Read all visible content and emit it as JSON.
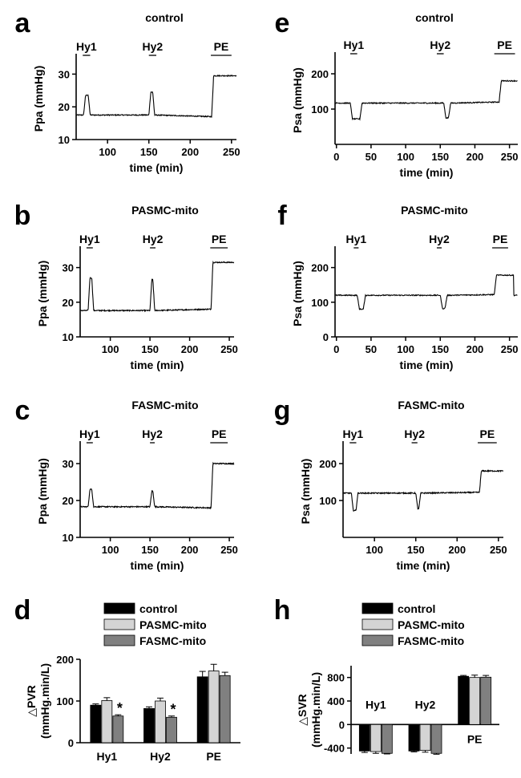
{
  "panels": [
    {
      "letter": "a",
      "type": "trace",
      "title": "control",
      "ylabel": "Ppa (mmHg)",
      "xlabel": "time (min)",
      "xlim": [
        62,
        256
      ],
      "ylim": [
        10,
        35
      ],
      "xticks": [
        100,
        150,
        200,
        250
      ],
      "yticks": [
        10,
        20,
        30
      ],
      "events": [
        {
          "label": "Hy1",
          "start": 70,
          "end": 79
        },
        {
          "label": "Hy2",
          "start": 150,
          "end": 159
        },
        {
          "label": "PE",
          "start": 225,
          "end": 250
        }
      ],
      "trace": {
        "baseline": 17.5,
        "segments": [
          [
            71,
            79,
            23.5
          ],
          [
            150,
            157,
            24.5
          ],
          [
            226,
            256,
            29.5
          ]
        ],
        "pe_base": 17.0
      }
    },
    {
      "letter": "b",
      "type": "trace",
      "title": "PASMC-mito",
      "ylabel": "Ppa (mmHg)",
      "xlabel": "time (min)",
      "xlim": [
        62,
        256
      ],
      "ylim": [
        10,
        35
      ],
      "xticks": [
        100,
        150,
        200,
        250
      ],
      "yticks": [
        10,
        20,
        30
      ],
      "events": [
        {
          "label": "Hy1",
          "start": 70,
          "end": 78
        },
        {
          "label": "Hy2",
          "start": 150,
          "end": 157
        },
        {
          "label": "PE",
          "start": 226,
          "end": 248
        }
      ],
      "trace": {
        "baseline": 17.6,
        "segments": [
          [
            72,
            79,
            27
          ],
          [
            150,
            156,
            26.5
          ],
          [
            227,
            256,
            31.5
          ]
        ],
        "pe_base": 18.0
      }
    },
    {
      "letter": "c",
      "type": "trace",
      "title": "FASMC-mito",
      "ylabel": "Ppa (mmHg)",
      "xlabel": "time (min)",
      "xlim": [
        62,
        256
      ],
      "ylim": [
        10,
        35
      ],
      "xticks": [
        100,
        150,
        200,
        250
      ],
      "yticks": [
        10,
        20,
        30
      ],
      "events": [
        {
          "label": "Hy1",
          "start": 70,
          "end": 78
        },
        {
          "label": "Hy2",
          "start": 150,
          "end": 156
        },
        {
          "label": "PE",
          "start": 226,
          "end": 248
        }
      ],
      "trace": {
        "baseline": 18.3,
        "segments": [
          [
            72,
            79,
            23
          ],
          [
            150,
            156,
            22.5
          ],
          [
            227,
            256,
            30
          ]
        ],
        "pe_base": 18.0
      }
    },
    {
      "letter": "e",
      "type": "trace",
      "title": "control",
      "ylabel": "Psa (mmHg)",
      "xlabel": "time (min)",
      "xlim": [
        -2,
        262
      ],
      "ylim": [
        0,
        250
      ],
      "xticks": [
        0,
        50,
        100,
        150,
        200,
        250
      ],
      "yticks": [
        100,
        200
      ],
      "events": [
        {
          "label": "Hy1",
          "start": 20,
          "end": 30
        },
        {
          "label": "Hy2",
          "start": 145,
          "end": 155
        },
        {
          "label": "PE",
          "start": 228,
          "end": 258
        }
      ],
      "trace": {
        "baseline": 117,
        "segments": [
          [
            20,
            37,
            72
          ],
          [
            155,
            165,
            75
          ],
          [
            235,
            262,
            180
          ]
        ],
        "pe_base": 120
      }
    },
    {
      "letter": "f",
      "type": "trace",
      "title": "PASMC-mito",
      "ylabel": "Psa (mmHg)",
      "xlabel": "time (min)",
      "xlim": [
        -2,
        262
      ],
      "ylim": [
        0,
        250
      ],
      "xticks": [
        0,
        50,
        100,
        150,
        200,
        250
      ],
      "yticks": [
        0,
        100,
        200
      ],
      "events": [
        {
          "label": "Hy1",
          "start": 25,
          "end": 32
        },
        {
          "label": "Hy2",
          "start": 145,
          "end": 152
        },
        {
          "label": "PE",
          "start": 225,
          "end": 248
        }
      ],
      "trace": {
        "baseline": 120,
        "segments": [
          [
            30,
            42,
            80
          ],
          [
            150,
            160,
            82
          ],
          [
            228,
            256,
            178
          ]
        ],
        "pe_base": 122
      }
    },
    {
      "letter": "g",
      "type": "trace",
      "title": "FASMC-mito",
      "ylabel": "Psa (mmHg)",
      "xlabel": "time (min)",
      "xlim": [
        62,
        256
      ],
      "ylim": [
        0,
        250
      ],
      "xticks": [
        100,
        150,
        200,
        250
      ],
      "yticks": [
        100,
        200
      ],
      "events": [
        {
          "label": "Hy1",
          "start": 70,
          "end": 78
        },
        {
          "label": "Hy2",
          "start": 145,
          "end": 152
        },
        {
          "label": "PE",
          "start": 225,
          "end": 248
        }
      ],
      "trace": {
        "baseline": 120,
        "segments": [
          [
            72,
            80,
            73
          ],
          [
            150,
            156,
            78
          ],
          [
            227,
            256,
            180
          ]
        ],
        "pe_base": 122
      }
    }
  ],
  "chart_data": [
    {
      "type": "bar",
      "letter": "d",
      "categories": [
        "Hy1",
        "Hy2",
        "PE"
      ],
      "ylabel": "△PVR\n(mmHg.min/L)",
      "ylim": [
        0,
        200
      ],
      "yticks": [
        0,
        100,
        200
      ],
      "series": [
        {
          "name": "control",
          "color": "#000000",
          "values": [
            90,
            82,
            158
          ],
          "errors": [
            3,
            4,
            13
          ]
        },
        {
          "name": "PASMC-mito",
          "color": "#d4d4d4",
          "values": [
            101,
            100,
            172
          ],
          "errors": [
            7,
            7,
            16
          ]
        },
        {
          "name": "FASMC-mito",
          "color": "#808080",
          "values": [
            64,
            61,
            161
          ],
          "errors": [
            3,
            3,
            8
          ]
        }
      ],
      "annotations": [
        {
          "category": "Hy1",
          "series": "FASMC-mito",
          "text": "*"
        },
        {
          "category": "Hy2",
          "series": "FASMC-mito",
          "text": "*"
        }
      ]
    },
    {
      "type": "bar",
      "letter": "h",
      "categories": [
        "Hy1",
        "Hy2",
        "PE"
      ],
      "ylabel": "△SVR\n(mmHg.min/L)",
      "ylim": [
        -500,
        1000
      ],
      "yticks": [
        -400,
        0,
        400,
        800
      ],
      "series": [
        {
          "name": "control",
          "color": "#000000",
          "values": [
            -450,
            -450,
            820
          ],
          "errors": [
            25,
            15,
            15
          ]
        },
        {
          "name": "PASMC-mito",
          "color": "#d4d4d4",
          "values": [
            -460,
            -440,
            800
          ],
          "errors": [
            30,
            30,
            40
          ]
        },
        {
          "name": "FASMC-mito",
          "color": "#808080",
          "values": [
            -490,
            -490,
            805
          ],
          "errors": [
            10,
            15,
            30
          ]
        }
      ],
      "annotations": []
    }
  ]
}
